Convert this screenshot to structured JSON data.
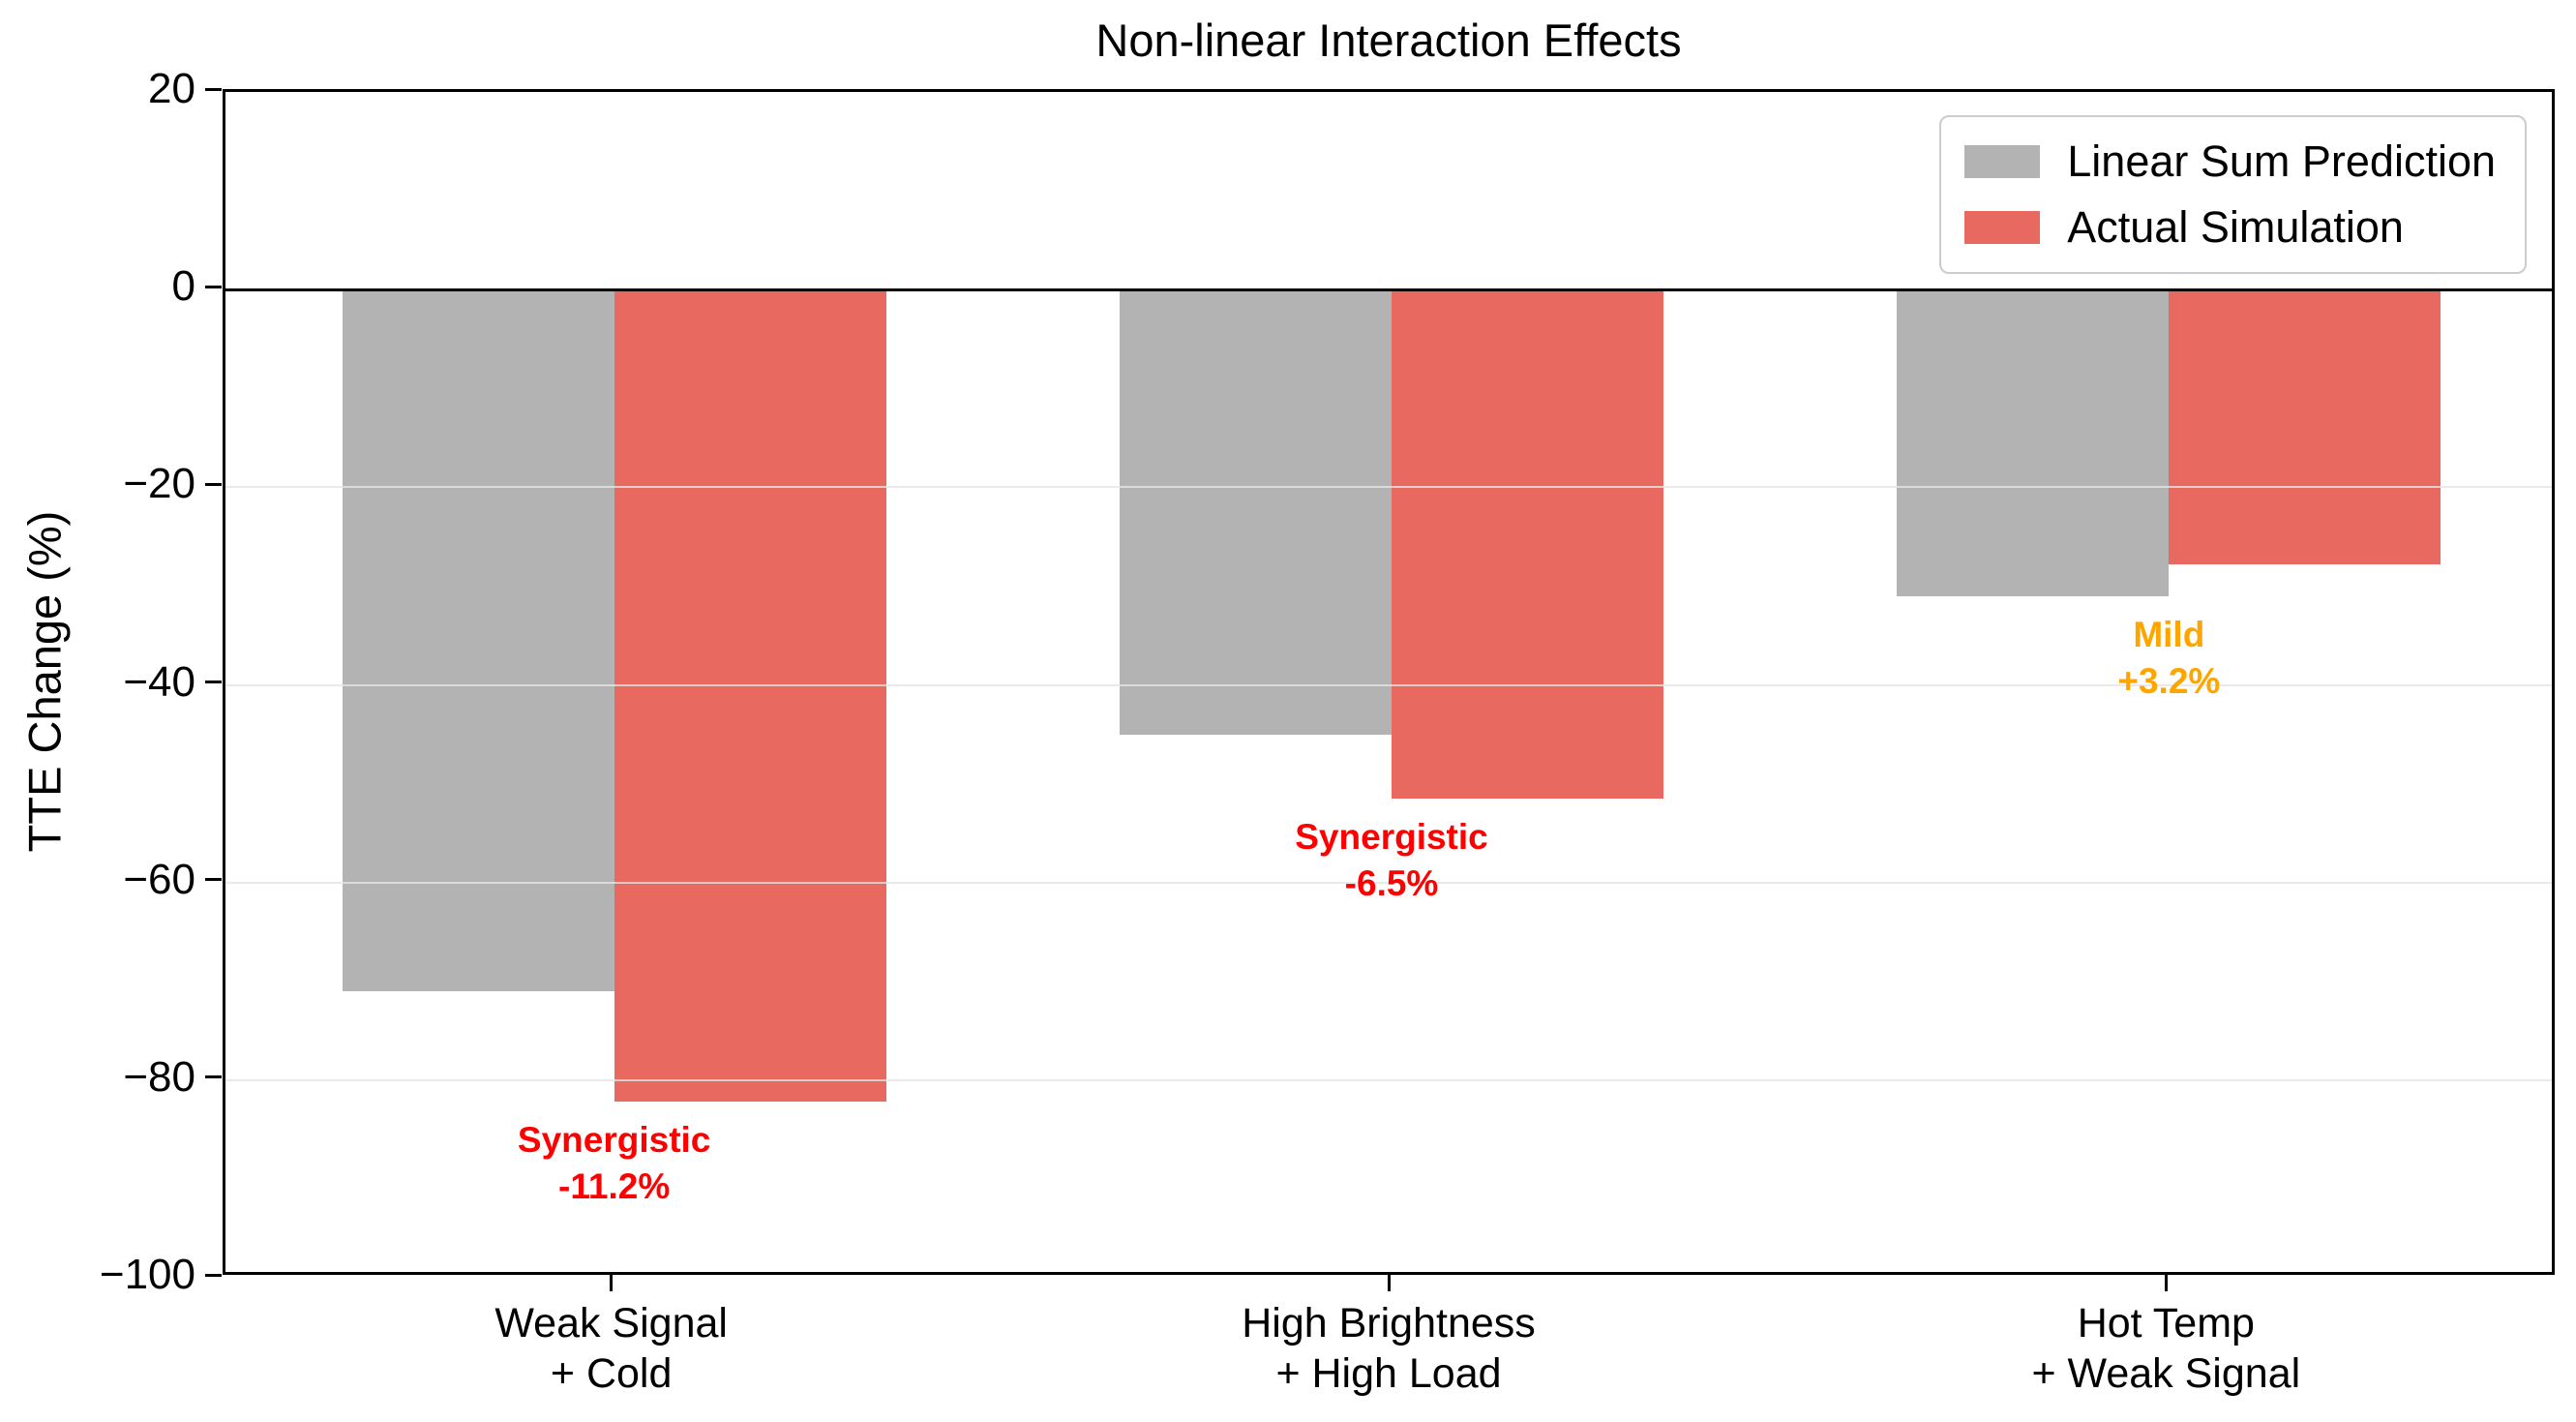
{
  "chart_data": {
    "type": "bar",
    "title": "Non-linear Interaction Effects",
    "ylabel": "TTE Change (%)",
    "xlabel": "",
    "ylim": [
      -100,
      20
    ],
    "yticks": [
      20,
      0,
      -20,
      -40,
      -60,
      -80,
      -100
    ],
    "ytick_labels": [
      "20",
      "0",
      "−20",
      "−40",
      "−60",
      "−80",
      "−100"
    ],
    "gridlines_at": [
      -20,
      -40,
      -60,
      -80
    ],
    "zero_line": 0,
    "grid": "horizontal",
    "legend_position": "upper right",
    "categories": [
      [
        "Weak Signal",
        "+ Cold"
      ],
      [
        "High Brightness",
        "+ High Load"
      ],
      [
        "Hot Temp",
        "+ Weak Signal"
      ]
    ],
    "series": [
      {
        "name": "Linear Sum Prediction",
        "color": "#b3b3b3",
        "values": [
          -71,
          -45,
          -31
        ]
      },
      {
        "name": "Actual Simulation",
        "color": "#e8695f",
        "values": [
          -82.2,
          -51.5,
          -27.8
        ]
      }
    ],
    "annotations": [
      {
        "category_index": 0,
        "lines": [
          "Synergistic",
          "-11.2%"
        ],
        "color": "#ff0000"
      },
      {
        "category_index": 1,
        "lines": [
          "Synergistic",
          "-6.5%"
        ],
        "color": "#ff0000"
      },
      {
        "category_index": 2,
        "lines": [
          "Mild",
          "+3.2%"
        ],
        "color": "#ffa500"
      }
    ]
  }
}
